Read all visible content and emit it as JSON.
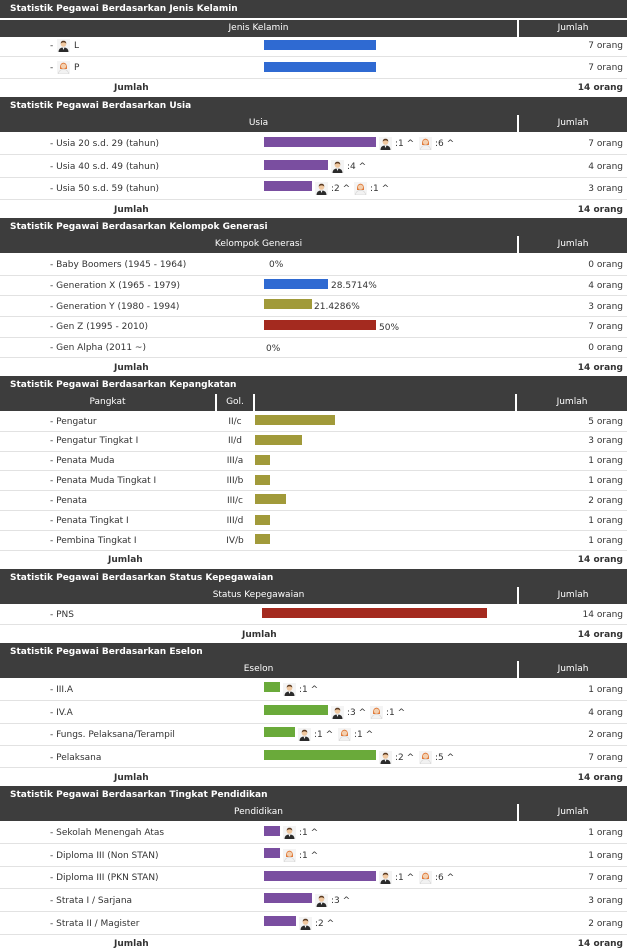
{
  "colors": {
    "header_bg": "#3d3d3d",
    "blue": "#2f6ad2",
    "purple": "#7a4ea0",
    "olive": "#a19a3a",
    "red": "#a42a1f",
    "green": "#6aaa3a"
  },
  "gender": {
    "title": "Statistik Pegawai Berdasarkan Jenis Kelamin",
    "col_label": "Jenis Kelamin",
    "col_count": "Jumlah",
    "rows": [
      {
        "prefix": "-",
        "label": "L",
        "icon": "male-icon",
        "count": "7 orang"
      },
      {
        "prefix": "-",
        "label": "P",
        "icon": "female-icon",
        "count": "7 orang"
      }
    ],
    "total_label": "Jumlah",
    "total": "14 orang"
  },
  "age": {
    "title": "Statistik Pegawai Berdasarkan Usia",
    "col_label": "Usia",
    "col_count": "Jumlah",
    "rows": [
      {
        "label": "- Usia 20 s.d. 29 (tahun)",
        "male": ":1 ^",
        "female": ":6 ^",
        "count": "7 orang"
      },
      {
        "label": "- Usia 40 s.d. 49 (tahun)",
        "male": ":4 ^",
        "count": "4 orang"
      },
      {
        "label": "- Usia 50 s.d. 59 (tahun)",
        "male": ":2 ^",
        "female": ":1 ^",
        "count": "3 orang"
      }
    ],
    "total_label": "Jumlah",
    "total": "14 orang"
  },
  "generation": {
    "title": "Statistik Pegawai Berdasarkan Kelompok Generasi",
    "col_label": "Kelompok Generasi",
    "col_count": "Jumlah",
    "rows": [
      {
        "label": "- Baby Boomers (1945 - 1964)",
        "pct": "0%",
        "count": "0 orang"
      },
      {
        "label": "- Generation X (1965 - 1979)",
        "pct": "28.5714%",
        "count": "4 orang"
      },
      {
        "label": "- Generation Y (1980 - 1994)",
        "pct": "21.4286%",
        "count": "3 orang"
      },
      {
        "label": "- Gen Z (1995 - 2010)",
        "pct": "50%",
        "count": "7 orang"
      },
      {
        "label": "- Gen Alpha (2011 ~)",
        "pct": "0%",
        "count": "0 orang"
      }
    ],
    "total_label": "Jumlah",
    "total": "14 orang"
  },
  "rank": {
    "title": "Statistik Pegawai Berdasarkan Kepangkatan",
    "col_label": "Pangkat",
    "col_gol": "Gol.",
    "col_count": "Jumlah",
    "rows": [
      {
        "label": "- Pengatur",
        "gol": "II/c",
        "count": "5 orang"
      },
      {
        "label": "- Pengatur Tingkat I",
        "gol": "II/d",
        "count": "3 orang"
      },
      {
        "label": "- Penata Muda",
        "gol": "III/a",
        "count": "1 orang"
      },
      {
        "label": "- Penata Muda Tingkat I",
        "gol": "III/b",
        "count": "1 orang"
      },
      {
        "label": "- Penata",
        "gol": "III/c",
        "count": "2 orang"
      },
      {
        "label": "- Penata Tingkat I",
        "gol": "III/d",
        "count": "1 orang"
      },
      {
        "label": "- Pembina Tingkat I",
        "gol": "IV/b",
        "count": "1 orang"
      }
    ],
    "total_label": "Jumlah",
    "total": "14 orang"
  },
  "status": {
    "title": "Statistik Pegawai Berdasarkan Status Kepegawaian",
    "col_label": "Status Kepegawaian",
    "col_count": "Jumlah",
    "rows": [
      {
        "label": "- PNS",
        "count": "14 orang"
      }
    ],
    "total_label": "Jumlah",
    "total": "14 orang"
  },
  "echelon": {
    "title": "Statistik Pegawai Berdasarkan Eselon",
    "col_label": "Eselon",
    "col_count": "Jumlah",
    "rows": [
      {
        "label": "- III.A",
        "male": ":1 ^",
        "count": "1 orang"
      },
      {
        "label": "- IV.A",
        "male": ":3 ^",
        "female": ":1 ^",
        "count": "4 orang"
      },
      {
        "label": "- Fungs. Pelaksana/Terampil",
        "male": ":1 ^",
        "female": ":1 ^",
        "count": "2 orang"
      },
      {
        "label": "- Pelaksana",
        "male": ":2 ^",
        "female": ":5 ^",
        "count": "7 orang"
      }
    ],
    "total_label": "Jumlah",
    "total": "14 orang"
  },
  "education": {
    "title": "Statistik Pegawai Berdasarkan Tingkat Pendidikan",
    "col_label": "Pendidikan",
    "col_count": "Jumlah",
    "rows": [
      {
        "label": "- Sekolah Menengah Atas",
        "male": ":1 ^",
        "count": "1 orang"
      },
      {
        "label": "- Diploma III (Non STAN)",
        "female": ":1 ^",
        "count": "1 orang"
      },
      {
        "label": "- Diploma III (PKN STAN)",
        "male": ":1 ^",
        "female": ":6 ^",
        "count": "7 orang"
      },
      {
        "label": "- Strata I / Sarjana",
        "male": ":3 ^",
        "count": "3 orang"
      },
      {
        "label": "- Strata II / Magister",
        "male": ":2 ^",
        "count": "2 orang"
      }
    ],
    "total_label": "Jumlah",
    "total": "14 orang"
  }
}
